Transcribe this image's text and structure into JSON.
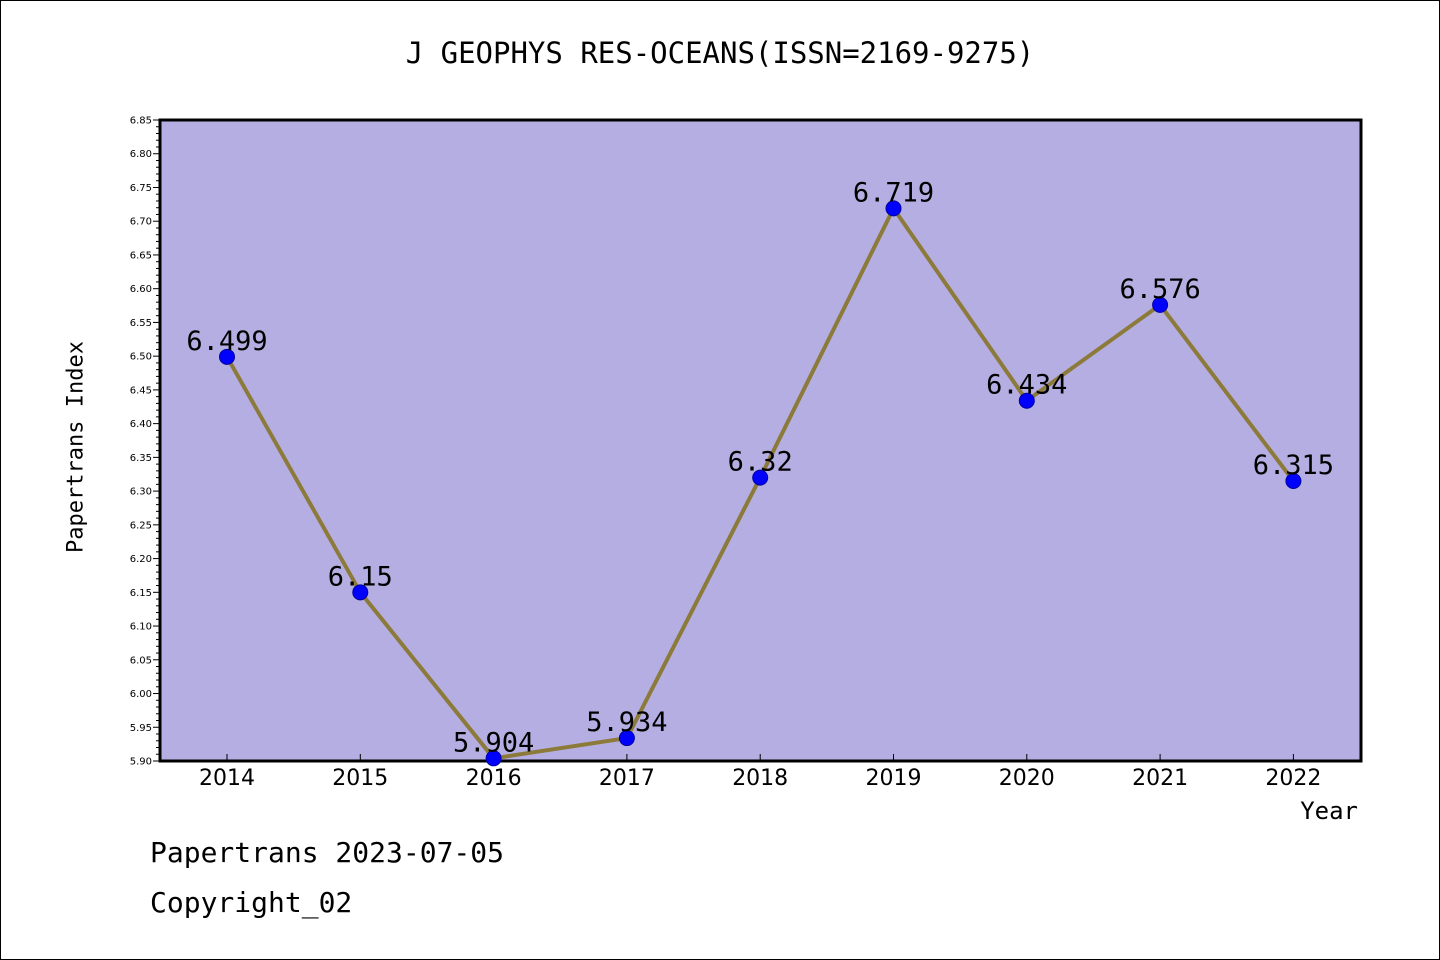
{
  "header": {
    "title": "J GEOPHYS RES-OCEANS(ISSN=2169-9275)"
  },
  "footer": {
    "line1": "Papertrans 2023-07-05",
    "line2": "Copyright_02"
  },
  "colors": {
    "plot_bg": "#b5aee2",
    "line": "#8c7a3a",
    "marker": "#0000ff"
  },
  "chart_data": {
    "type": "line",
    "title": "J GEOPHYS RES-OCEANS(ISSN=2169-9275)",
    "xlabel": "Year",
    "ylabel": "Papertrans Index",
    "categories": [
      "2014",
      "2015",
      "2016",
      "2017",
      "2018",
      "2019",
      "2020",
      "2021",
      "2022"
    ],
    "series": [
      {
        "values": [
          6.499,
          6.15,
          5.904,
          5.934,
          6.32,
          6.719,
          6.434,
          6.576,
          6.315
        ]
      }
    ],
    "data_labels": [
      "6.499",
      "6.15",
      "5.904",
      "5.934",
      "6.32",
      "6.719",
      "6.434",
      "6.576",
      "6.315"
    ],
    "ylim": [
      5.9,
      6.85
    ],
    "yticks": [
      "5.90",
      "5.95",
      "6.00",
      "6.05",
      "6.10",
      "6.15",
      "6.20",
      "6.25",
      "6.30",
      "6.35",
      "6.40",
      "6.45",
      "6.50",
      "6.55",
      "6.60",
      "6.65",
      "6.70",
      "6.75",
      "6.80",
      "6.85"
    ],
    "grid": false,
    "legend": "none"
  }
}
